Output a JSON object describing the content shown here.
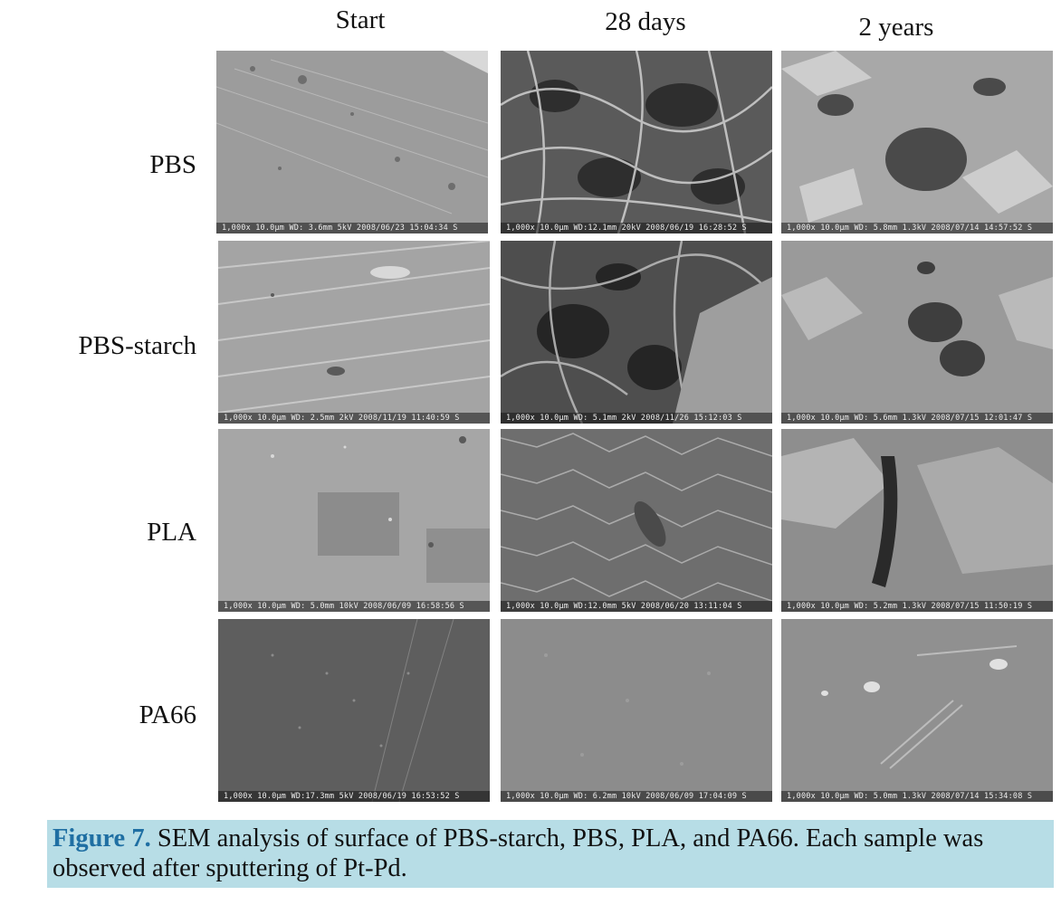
{
  "columns": [
    "Start",
    "28 days",
    "2 years"
  ],
  "rows": [
    "PBS",
    "PBS-starch",
    "PLA",
    "PA66"
  ],
  "panels": [
    [
      "1,000x 10.0µm WD: 3.6mm   5kV 2008/06/23 15:04:34 S",
      "1,000x 10.0µm WD:12.1mm  20kV 2008/06/19 16:28:52 S",
      "1,000x 10.0µm WD: 5.8mm 1.3kV 2008/07/14 14:57:52 S"
    ],
    [
      "1,000x 10.0µm WD: 2.5mm   2kV 2008/11/19 11:40:59 S",
      "1,000x 10.0µm WD: 5.1mm   2kV 2008/11/26 15:12:03 S",
      "1,000x 10.0µm WD: 5.6mm 1.3kV 2008/07/15 12:01:47 S"
    ],
    [
      "1,000x 10.0µm WD: 5.0mm  10kV 2008/06/09 16:58:56 S",
      "1,000x 10.0µm WD:12.0mm   5kV 2008/06/20 13:11:04 S",
      "1,000x 10.0µm WD: 5.2mm 1.3kV 2008/07/15 11:50:19 S"
    ],
    [
      "1,000x 10.0µm WD:17.3mm   5kV 2008/06/19 16:53:52 S",
      "1,000x 10.0µm WD: 6.2mm  10kV 2008/06/09 17:04:09 S",
      "1,000x 10.0µm WD: 5.0mm 1.3kV 2008/07/14 15:34:08 S"
    ]
  ],
  "caption": {
    "label": "Figure 7.",
    "text": " SEM analysis of surface of PBS-starch, PBS, PLA, and PA66. Each sample was observed after sputtering of Pt-Pd."
  },
  "colors": {
    "caption_background": "#b7dde6",
    "caption_label": "#1f6fa3"
  }
}
